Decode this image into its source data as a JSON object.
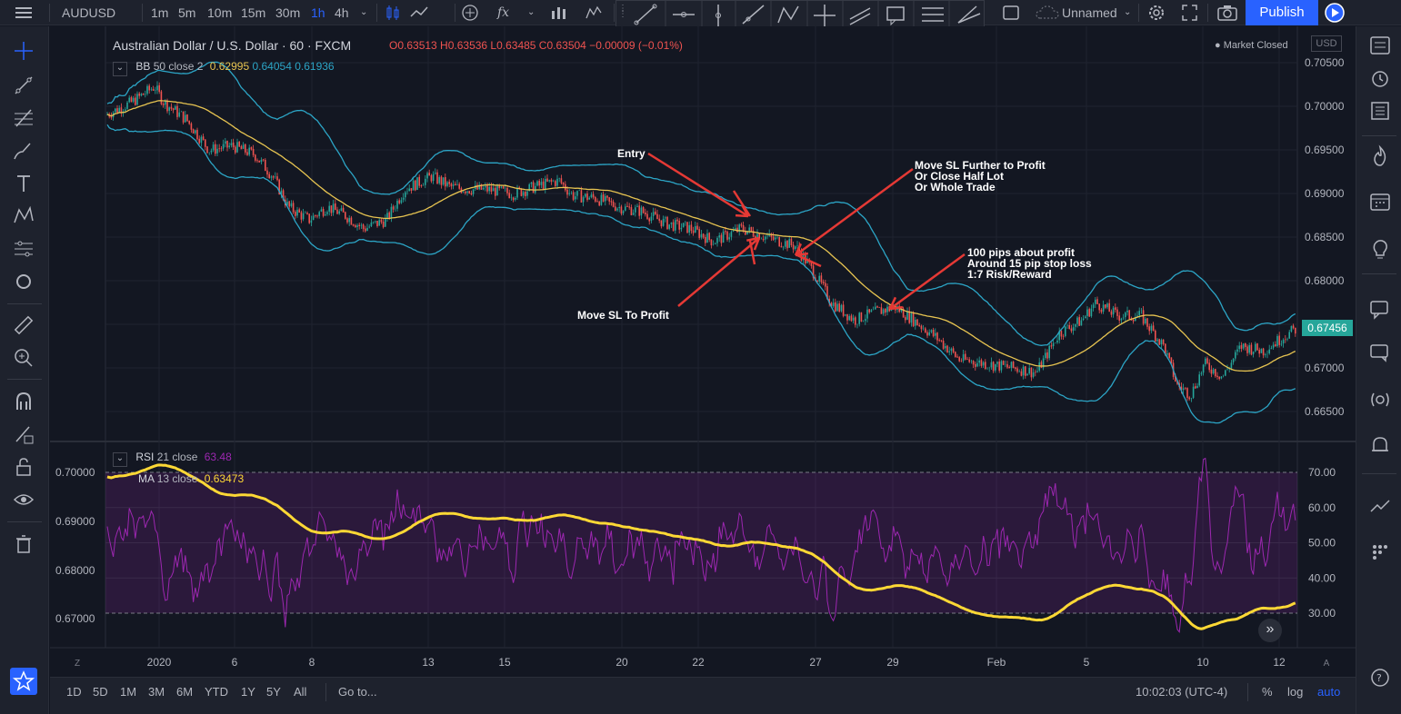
{
  "topbar": {
    "symbol": "AUDUSD",
    "intervals": [
      "1m",
      "5m",
      "10m",
      "15m",
      "30m",
      "1h",
      "4h"
    ],
    "active_interval": "1h",
    "layout_name": "Unnamed",
    "publish_label": "Publish"
  },
  "header": {
    "title": "Australian Dollar / U.S. Dollar · 60 · FXCM",
    "ohlc": "O0.63513 H0.63536 L0.63485 C0.63504 −0.00009 (−0.01%)",
    "market_status": "Market Closed",
    "currency": "USD"
  },
  "indicators": {
    "bb_name": "BB",
    "bb_params": "50 close 2",
    "bb_values": [
      "0.62995",
      "0.64054",
      "0.61936"
    ],
    "rsi_name": "RSI",
    "rsi_params": "21 close",
    "rsi_value": "63.48",
    "ma_name": "MA",
    "ma_params": "13 close",
    "ma_value": "0.63473"
  },
  "price_axis": [
    "0.70500",
    "0.70000",
    "0.69500",
    "0.69000",
    "0.68500",
    "0.68000",
    "0.67500",
    "0.67000",
    "0.66500"
  ],
  "last_price": "0.67456",
  "rsi_axis": [
    "70.00",
    "60.00",
    "50.00",
    "40.00",
    "30.00"
  ],
  "rsi_left_axis": [
    "0.70000",
    "0.69000",
    "0.68000",
    "0.67000"
  ],
  "time_axis": [
    "2020",
    "6",
    "8",
    "13",
    "15",
    "20",
    "22",
    "27",
    "29",
    "Feb",
    "5",
    "10",
    "12"
  ],
  "annotations": {
    "entry": "Entry",
    "move_sl_further": "Move SL Further to Profit\nOr Close Half Lot\nOr Whole Trade",
    "profit": "100 pips about profit\nAround 15 pip stop loss\n1:7 Risk/Reward",
    "move_sl_profit": "Move SL To Profit"
  },
  "bottombar": {
    "ranges": [
      "1D",
      "5D",
      "1M",
      "3M",
      "6M",
      "YTD",
      "1Y",
      "5Y",
      "All"
    ],
    "goto": "Go to...",
    "clock": "10:02:03 (UTC-4)",
    "percent": "%",
    "log": "log",
    "auto": "auto"
  },
  "axis_corner": {
    "left": "Z",
    "right": "A"
  },
  "colors": {
    "background": "#131722",
    "bb_upper": "#2ca5c6",
    "bb_basis": "#e7c451",
    "rsi_line": "#9c27b0",
    "ma_line": "#fdd835",
    "annotation_arrow": "#e53935",
    "accent": "#2962ff",
    "up": "#26a69a",
    "down": "#ef5350"
  },
  "icons": {
    "left_toolbar": [
      "crosshair-icon",
      "trendline-icon",
      "fib-icon",
      "brush-icon",
      "text-icon",
      "pattern-icon",
      "prediction-icon",
      "shape-icon",
      "ruler-icon",
      "zoom-icon",
      "magnet-icon",
      "lock-draw-icon",
      "lock-icon",
      "eye-icon",
      "trash-icon",
      "star-icon"
    ],
    "right_toolbar": [
      "watchlist-icon",
      "alarm-icon",
      "news-icon",
      "hotlist-icon",
      "calendar-icon",
      "ideas-icon",
      "chat-icon",
      "chat2-icon",
      "streams-icon",
      "notifications-icon",
      "trend-icon",
      "grid-icon",
      "help-icon"
    ]
  }
}
